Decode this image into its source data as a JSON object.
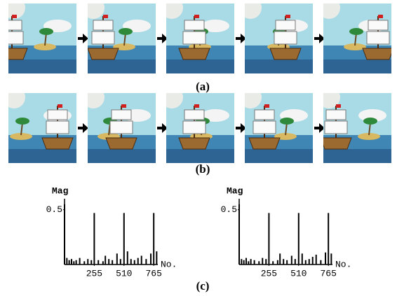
{
  "captions": [
    "(a)",
    "(b)",
    "(c)"
  ],
  "chart_data": [
    {
      "type": "bar",
      "y_label": "Mag",
      "x_label": "No.",
      "x": [
        0,
        20,
        40,
        60,
        80,
        100,
        130,
        170,
        200,
        230,
        255,
        290,
        330,
        350,
        380,
        410,
        450,
        480,
        510,
        540,
        570,
        600,
        630,
        660,
        700,
        740,
        765,
        790
      ],
      "values": [
        0.55,
        0.06,
        0.04,
        0.05,
        0.03,
        0.04,
        0.06,
        0.03,
        0.05,
        0.04,
        0.47,
        0.04,
        0.03,
        0.08,
        0.05,
        0.04,
        0.1,
        0.05,
        0.47,
        0.12,
        0.05,
        0.04,
        0.06,
        0.08,
        0.05,
        0.1,
        0.47,
        0.12
      ],
      "color": "#000000",
      "xlim": [
        0,
        800
      ],
      "ylim": [
        0,
        0.6
      ],
      "xticks": [
        255,
        510,
        765
      ],
      "yticks": [
        0.5
      ]
    },
    {
      "type": "bar",
      "y_label": "Mag",
      "x_label": "No.",
      "x": [
        0,
        20,
        40,
        60,
        80,
        100,
        130,
        170,
        200,
        230,
        255,
        290,
        330,
        350,
        380,
        410,
        450,
        480,
        510,
        540,
        570,
        600,
        630,
        660,
        700,
        740,
        765,
        790
      ],
      "values": [
        0.55,
        0.05,
        0.04,
        0.06,
        0.03,
        0.05,
        0.04,
        0.03,
        0.06,
        0.05,
        0.47,
        0.03,
        0.04,
        0.1,
        0.05,
        0.04,
        0.08,
        0.05,
        0.47,
        0.1,
        0.04,
        0.05,
        0.07,
        0.09,
        0.04,
        0.11,
        0.47,
        0.1
      ],
      "color": "#000000",
      "xlim": [
        0,
        800
      ],
      "ylim": [
        0,
        0.6
      ],
      "xticks": [
        255,
        510,
        765
      ],
      "yticks": [
        0.5
      ]
    }
  ]
}
